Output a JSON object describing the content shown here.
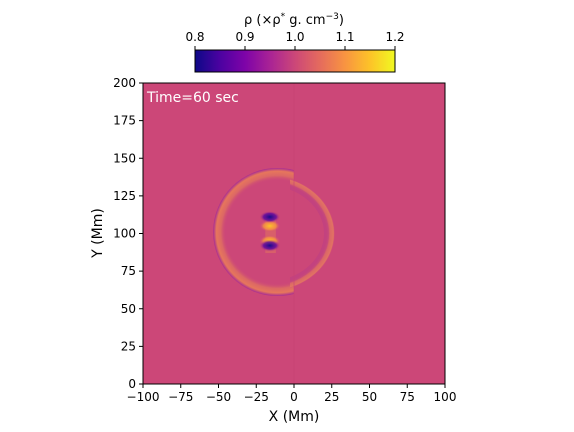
{
  "chart_data": {
    "type": "heatmap",
    "title": "",
    "xlabel": "X (Mm)",
    "ylabel": "Y (Mm)",
    "xlim": [
      -100,
      100
    ],
    "ylim": [
      0,
      200
    ],
    "x_ticks": [
      -100,
      -75,
      -50,
      -25,
      0,
      25,
      50,
      75,
      100
    ],
    "y_ticks": [
      0,
      25,
      50,
      75,
      100,
      125,
      150,
      175,
      200
    ],
    "x_tick_labels": [
      "−100",
      "−75",
      "−50",
      "−25",
      "0",
      "25",
      "50",
      "75",
      "100"
    ],
    "y_tick_labels": [
      "0",
      "25",
      "50",
      "75",
      "100",
      "125",
      "150",
      "175",
      "200"
    ],
    "annotation": "Time=60 sec",
    "colorbar": {
      "label_main": "ρ (×ρ",
      "label_sup": "*",
      "label_unit": " g. cm",
      "label_exp": "−3",
      "label_close": ")",
      "colormap": "plasma",
      "range": [
        0.8,
        1.2
      ],
      "ticks": [
        0.8,
        0.9,
        1.0,
        1.1,
        1.2
      ],
      "tick_labels": [
        "0.8",
        "0.9",
        "1.0",
        "1.1",
        "1.2"
      ],
      "location": "top"
    },
    "background_value": 1.0,
    "features": [
      {
        "name": "left-arc-shell",
        "center_x": -11,
        "center_y": 101,
        "radius": 38,
        "value_outer": 0.96,
        "value_inner": 1.06
      },
      {
        "name": "right-arc-shell",
        "center_x": -18,
        "center_y": 100,
        "radius": 43,
        "value": 1.05
      },
      {
        "name": "dark-spot-top",
        "x": -16,
        "y": 111,
        "value": 0.8
      },
      {
        "name": "dark-spot-bottom",
        "x": -16,
        "y": 92,
        "value": 0.82
      },
      {
        "name": "bright-spot-top",
        "x": -16,
        "y": 105,
        "value": 1.12
      },
      {
        "name": "bright-spot-bottom",
        "x": -16,
        "y": 95,
        "value": 1.1
      }
    ]
  },
  "colors": {
    "background": "#cc4778",
    "shell_bright": "#e8795a",
    "shell_dark": "#9c179e"
  }
}
